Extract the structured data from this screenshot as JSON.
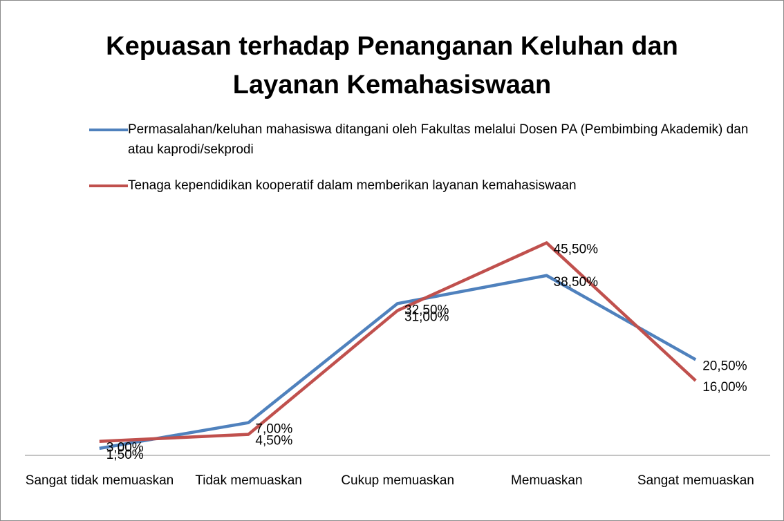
{
  "chart_data": {
    "type": "line",
    "title": "Kepuasan terhadap Penanganan Keluhan dan Layanan Kemahasiswaan",
    "categories": [
      "Sangat tidak memuaskan",
      "Tidak memuaskan",
      "Cukup memuaskan",
      "Memuaskan",
      "Sangat memuaskan"
    ],
    "series": [
      {
        "name": "Permasalahan/keluhan mahasiswa ditangani oleh Fakultas melalui Dosen PA (Pembimbing Akademik) dan atau kaprodi/sekprodi",
        "color": "#4f81bd",
        "values": [
          1.5,
          7.0,
          32.5,
          38.5,
          20.5
        ],
        "value_labels": [
          "1,50%",
          "7,00%",
          "32,50%",
          "38,50%",
          "20,50%"
        ]
      },
      {
        "name": "Tenaga kependidikan  kooperatif dalam memberikan layanan kemahasiswaan",
        "color": "#c0504d",
        "values": [
          3.0,
          4.5,
          31.0,
          45.5,
          16.0
        ],
        "value_labels": [
          "3,00%",
          "4,50%",
          "31,00%",
          "45,50%",
          "16,00%"
        ]
      }
    ],
    "ylim": [
      0,
      50
    ],
    "legend": "top"
  }
}
